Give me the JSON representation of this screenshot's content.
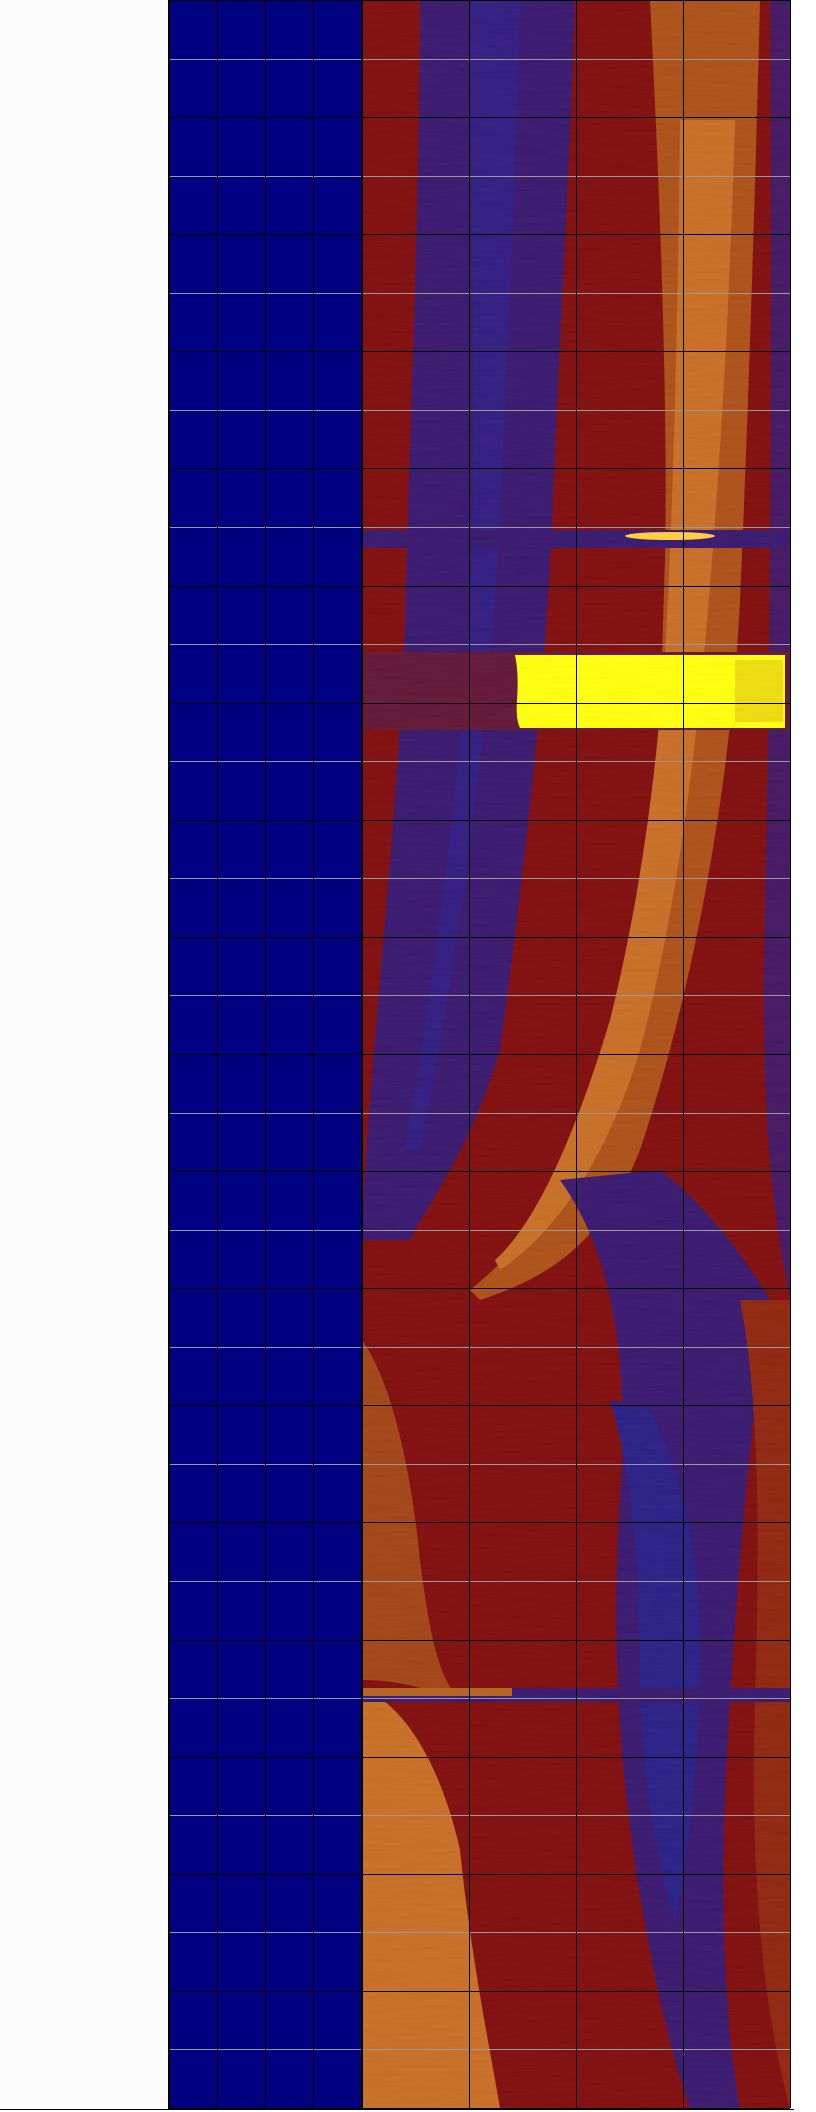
{
  "chart_data": {
    "type": "heatmap",
    "title": "",
    "xlabel": "",
    "ylabel": "",
    "legend": "none",
    "grid": true,
    "colors": {
      "background_track": "#000080",
      "low": "#2a0a6e",
      "mid_low": "#3d0a5c",
      "mid": "#7a0000",
      "mid_high": "#a83c00",
      "high": "#c86a10",
      "peak": "#ffff00",
      "grid_dark": "#000000",
      "grid_light": "#9a9a9a"
    },
    "tracks": [
      {
        "name": "",
        "content": "uniform-low",
        "color": "#000080",
        "columns": 4
      },
      {
        "name": "",
        "content": "image-log",
        "columns": 4
      }
    ],
    "rows": 36,
    "events": [
      {
        "type": "acquisition-gap",
        "row_fraction": 0.254
      },
      {
        "type": "saturated-band",
        "row_start_fraction": 0.31,
        "row_end_fraction": 0.345,
        "color": "#ffff00"
      },
      {
        "type": "acquisition-gap",
        "row_fraction": 0.803
      }
    ]
  }
}
